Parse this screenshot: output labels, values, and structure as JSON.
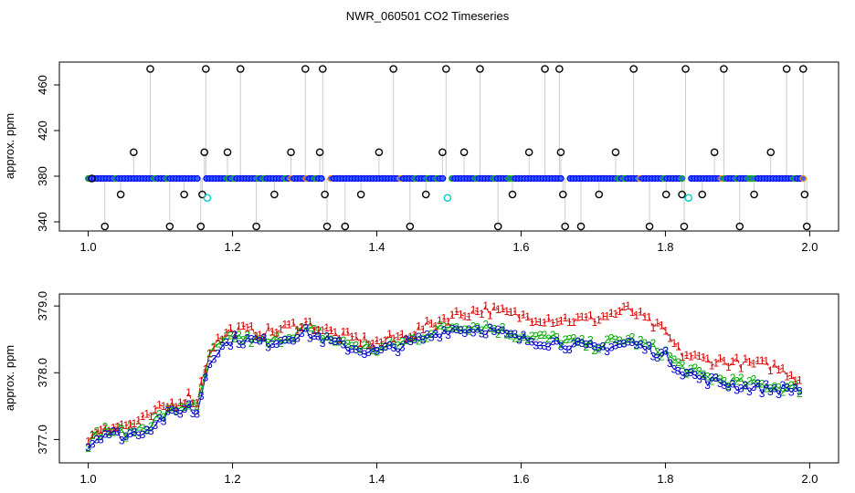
{
  "title": "NWR_060501  CO2 Timeseries",
  "chart_data": [
    {
      "type": "scatter",
      "panel": "top",
      "title": "",
      "xlabel": "",
      "ylabel": "approx. ppm",
      "xlim": [
        0.96,
        2.04
      ],
      "ylim": [
        332,
        480
      ],
      "xticks": [
        1.0,
        1.2,
        1.4,
        1.6,
        1.8,
        2.0
      ],
      "xtick_labels": [
        "1.0",
        "1.2",
        "1.4",
        "1.6",
        "1.8",
        "2.0"
      ],
      "yticks": [
        340,
        380,
        420,
        460
      ],
      "ytick_labels": [
        "340",
        "380",
        "420",
        "460"
      ],
      "grid": false,
      "legend": "none",
      "baseline_ppm": 378,
      "baseline_x_range": [
        1.0,
        1.993
      ],
      "baseline_gaps": [
        1.157,
        1.329,
        1.497,
        1.66,
        1.83
      ],
      "series": [
        {
          "role": "raw measurements (black open circles)",
          "color": "#000000",
          "points": [
            [
              1.005,
              378
            ],
            [
              1.023,
              336
            ],
            [
              1.045,
              364
            ],
            [
              1.063,
              401
            ],
            [
              1.086,
              474
            ],
            [
              1.113,
              336
            ],
            [
              1.133,
              364
            ],
            [
              1.156,
              336
            ],
            [
              1.158,
              364
            ],
            [
              1.161,
              401
            ],
            [
              1.163,
              474
            ],
            [
              1.193,
              401
            ],
            [
              1.211,
              474
            ],
            [
              1.233,
              336
            ],
            [
              1.258,
              364
            ],
            [
              1.281,
              401
            ],
            [
              1.301,
              474
            ],
            [
              1.321,
              401
            ],
            [
              1.325,
              474
            ],
            [
              1.328,
              364
            ],
            [
              1.331,
              336
            ],
            [
              1.356,
              336
            ],
            [
              1.378,
              364
            ],
            [
              1.403,
              401
            ],
            [
              1.423,
              474
            ],
            [
              1.446,
              336
            ],
            [
              1.468,
              364
            ],
            [
              1.491,
              401
            ],
            [
              1.496,
              474
            ],
            [
              1.521,
              401
            ],
            [
              1.543,
              474
            ],
            [
              1.568,
              336
            ],
            [
              1.588,
              364
            ],
            [
              1.611,
              401
            ],
            [
              1.633,
              474
            ],
            [
              1.653,
              474
            ],
            [
              1.655,
              401
            ],
            [
              1.658,
              364
            ],
            [
              1.661,
              336
            ],
            [
              1.683,
              336
            ],
            [
              1.708,
              364
            ],
            [
              1.731,
              401
            ],
            [
              1.756,
              474
            ],
            [
              1.778,
              336
            ],
            [
              1.801,
              364
            ],
            [
              1.823,
              364
            ],
            [
              1.826,
              336
            ],
            [
              1.828,
              474
            ],
            [
              1.851,
              364
            ],
            [
              1.868,
              401
            ],
            [
              1.881,
              474
            ],
            [
              1.903,
              336
            ],
            [
              1.923,
              364
            ],
            [
              1.946,
              401
            ],
            [
              1.968,
              474
            ],
            [
              1.991,
              474
            ],
            [
              1.993,
              364
            ],
            [
              1.996,
              336
            ]
          ]
        },
        {
          "role": "flagged (cyan open circles)",
          "color": "#00cccc",
          "points": [
            [
              1.165,
              361
            ],
            [
              1.498,
              361
            ],
            [
              1.832,
              361
            ]
          ]
        },
        {
          "role": "accepted (blue/green/orange circles along baseline)",
          "colors": [
            "#0000ff",
            "#00aa00",
            "#ff8800"
          ],
          "y": 378
        }
      ]
    },
    {
      "type": "scatter",
      "panel": "bottom",
      "title": "",
      "xlabel": "",
      "ylabel": "approx. ppm",
      "xlim": [
        0.96,
        2.04
      ],
      "ylim": [
        376.65,
        379.18
      ],
      "xticks": [
        1.0,
        1.2,
        1.4,
        1.6,
        1.8,
        2.0
      ],
      "xtick_labels": [
        "1.0",
        "1.2",
        "1.4",
        "1.6",
        "1.8",
        "2.0"
      ],
      "yticks": [
        377.0,
        378.0,
        379.0
      ],
      "ytick_labels": [
        "377.0",
        "378.0",
        "379.0"
      ],
      "grid": false,
      "legend": "none",
      "x_range": [
        1.0,
        1.99
      ],
      "series": [
        {
          "marker": "1",
          "color": "#dd0000",
          "trend": [
            [
              1.0,
              377.0
            ],
            [
              1.02,
              377.2
            ],
            [
              1.05,
              377.2
            ],
            [
              1.08,
              377.3
            ],
            [
              1.1,
              377.45
            ],
            [
              1.12,
              377.55
            ],
            [
              1.14,
              377.65
            ],
            [
              1.15,
              377.55
            ],
            [
              1.16,
              378.0
            ],
            [
              1.17,
              378.4
            ],
            [
              1.2,
              378.65
            ],
            [
              1.25,
              378.6
            ],
            [
              1.3,
              378.75
            ],
            [
              1.35,
              378.55
            ],
            [
              1.4,
              378.45
            ],
            [
              1.45,
              378.6
            ],
            [
              1.5,
              378.85
            ],
            [
              1.55,
              378.95
            ],
            [
              1.6,
              378.85
            ],
            [
              1.65,
              378.8
            ],
            [
              1.7,
              378.8
            ],
            [
              1.75,
              378.95
            ],
            [
              1.8,
              378.6
            ],
            [
              1.82,
              378.3
            ],
            [
              1.85,
              378.2
            ],
            [
              1.9,
              378.15
            ],
            [
              1.95,
              378.1
            ],
            [
              1.99,
              377.9
            ]
          ]
        },
        {
          "marker": "2",
          "color": "#00aa00",
          "trend": [
            [
              1.0,
              376.95
            ],
            [
              1.02,
              377.15
            ],
            [
              1.05,
              377.1
            ],
            [
              1.08,
              377.2
            ],
            [
              1.1,
              377.35
            ],
            [
              1.12,
              377.45
            ],
            [
              1.14,
              377.55
            ],
            [
              1.15,
              377.4
            ],
            [
              1.16,
              377.9
            ],
            [
              1.17,
              378.3
            ],
            [
              1.2,
              378.55
            ],
            [
              1.25,
              378.45
            ],
            [
              1.3,
              378.65
            ],
            [
              1.35,
              378.45
            ],
            [
              1.4,
              378.35
            ],
            [
              1.45,
              378.5
            ],
            [
              1.5,
              378.7
            ],
            [
              1.55,
              378.7
            ],
            [
              1.6,
              378.55
            ],
            [
              1.65,
              378.5
            ],
            [
              1.7,
              378.4
            ],
            [
              1.75,
              378.5
            ],
            [
              1.8,
              378.3
            ],
            [
              1.82,
              378.1
            ],
            [
              1.85,
              377.95
            ],
            [
              1.9,
              377.85
            ],
            [
              1.95,
              377.8
            ],
            [
              1.99,
              377.75
            ]
          ]
        },
        {
          "marker": "3",
          "color": "#0000cc",
          "trend": [
            [
              1.0,
              376.9
            ],
            [
              1.02,
              377.1
            ],
            [
              1.05,
              377.05
            ],
            [
              1.08,
              377.15
            ],
            [
              1.1,
              377.3
            ],
            [
              1.12,
              377.4
            ],
            [
              1.14,
              377.5
            ],
            [
              1.15,
              377.35
            ],
            [
              1.16,
              377.85
            ],
            [
              1.17,
              378.25
            ],
            [
              1.2,
              378.5
            ],
            [
              1.25,
              378.45
            ],
            [
              1.3,
              378.6
            ],
            [
              1.35,
              378.4
            ],
            [
              1.4,
              378.3
            ],
            [
              1.45,
              378.45
            ],
            [
              1.5,
              378.65
            ],
            [
              1.55,
              378.65
            ],
            [
              1.6,
              378.5
            ],
            [
              1.65,
              378.45
            ],
            [
              1.7,
              378.35
            ],
            [
              1.75,
              378.45
            ],
            [
              1.8,
              378.25
            ],
            [
              1.82,
              378.05
            ],
            [
              1.85,
              377.9
            ],
            [
              1.9,
              377.8
            ],
            [
              1.95,
              377.75
            ],
            [
              1.99,
              377.75
            ]
          ]
        }
      ]
    }
  ]
}
